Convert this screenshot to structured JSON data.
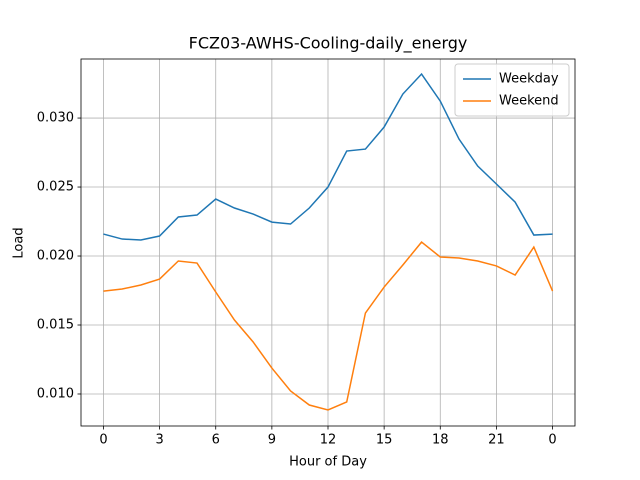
{
  "chart_data": {
    "type": "line",
    "title": "FCZ03-AWHS-Cooling-daily_energy",
    "xlabel": "Hour of Day",
    "ylabel": "Load",
    "x": [
      0,
      1,
      2,
      3,
      4,
      5,
      6,
      7,
      8,
      9,
      10,
      11,
      12,
      13,
      14,
      15,
      16,
      17,
      18,
      19,
      20,
      21,
      22,
      23,
      24
    ],
    "series": [
      {
        "name": "Weekday",
        "color": "#1f77b4",
        "values": [
          0.02159,
          0.02123,
          0.02116,
          0.02145,
          0.02283,
          0.02297,
          0.02413,
          0.02348,
          0.02304,
          0.02246,
          0.02232,
          0.02348,
          0.025,
          0.02761,
          0.02775,
          0.02935,
          0.03174,
          0.03319,
          0.03123,
          0.02848,
          0.02652,
          0.02522,
          0.02391,
          0.02152,
          0.02159
        ]
      },
      {
        "name": "Weekend",
        "color": "#ff7f0e",
        "values": [
          0.01746,
          0.01761,
          0.0179,
          0.01833,
          0.01964,
          0.01949,
          0.01739,
          0.01536,
          0.01377,
          0.01188,
          0.01022,
          0.0092,
          0.00884,
          0.00942,
          0.01587,
          0.01775,
          0.01935,
          0.02101,
          0.01993,
          0.01986,
          0.01964,
          0.01928,
          0.01862,
          0.02065,
          0.01746
        ]
      }
    ],
    "xlim": [
      -1.2,
      25.2
    ],
    "xticks": [
      0,
      3,
      6,
      9,
      12,
      15,
      18,
      21,
      {
        "value": 24,
        "label": "0"
      }
    ],
    "ylim": [
      0.00768,
      0.03428
    ],
    "yticks": [
      {
        "value": 0.01,
        "label": "0.010"
      },
      0.015,
      {
        "value": 0.02,
        "label": "0.020"
      },
      0.025,
      {
        "value": 0.03,
        "label": "0.030"
      }
    ],
    "grid": true,
    "legend": "upper right"
  }
}
